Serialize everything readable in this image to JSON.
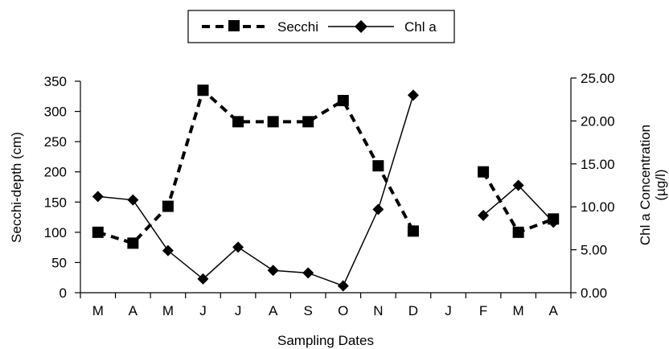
{
  "chart_data": {
    "type": "line",
    "categories": [
      "M",
      "A",
      "M",
      "J",
      "J",
      "A",
      "S",
      "O",
      "N",
      "D",
      "J",
      "F",
      "M",
      "A"
    ],
    "xlabel": "Sampling Dates",
    "ylabel_left": "Secchi-depth (cm)",
    "ylabel_right_line1": "Chl a Concentration",
    "ylabel_right_line2": "(µg/l)",
    "ylim_left": [
      0,
      350
    ],
    "yticks_left": [
      "0",
      "50",
      "100",
      "150",
      "200",
      "250",
      "300",
      "350"
    ],
    "ylim_right": [
      0,
      25
    ],
    "yticks_right": [
      "0.00",
      "5.00",
      "10.00",
      "15.00",
      "20.00",
      "25.00"
    ],
    "grid": false,
    "legend_position": "top-center",
    "series": [
      {
        "name": "Secchi",
        "axis": "left",
        "style": "dashed",
        "marker": "square",
        "color": "#000000",
        "values": [
          100,
          82,
          143,
          335,
          283,
          283,
          283,
          318,
          210,
          102,
          null,
          200,
          100,
          122
        ]
      },
      {
        "name": "Chl a",
        "axis": "right",
        "style": "solid",
        "marker": "diamond",
        "color": "#000000",
        "values": [
          11.2,
          10.8,
          4.9,
          1.6,
          5.3,
          2.6,
          2.3,
          0.8,
          9.7,
          23.0,
          null,
          9.0,
          12.5,
          8.2
        ]
      }
    ]
  }
}
